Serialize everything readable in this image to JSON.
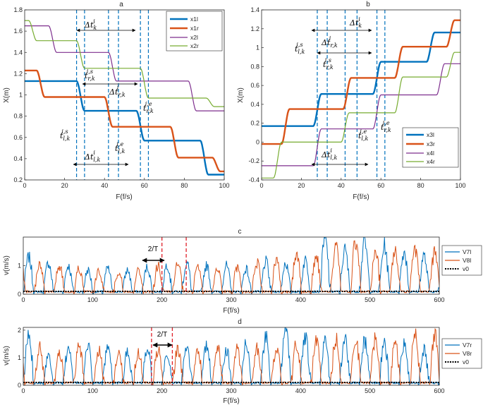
{
  "colors": {
    "blue": "#0072BD",
    "orange": "#D95319",
    "purple": "#7E2F8E",
    "green": "#77AC30",
    "red": "#E0202A",
    "black": "#000000"
  },
  "annotations": {
    "a": {
      "dt_k": "Δt",
      "dt_k_sub": "k",
      "dt_k_sup": "i",
      "t_rs": "t",
      "t_rs_sub": "r,k",
      "t_rs_sup": "i,s",
      "dt_rk": "Δt",
      "dt_rk_sub": "r,k",
      "dt_rk_sup": "i",
      "t_re": "t",
      "t_re_sub": "r,k",
      "t_re_sup": "i,e",
      "t_ls": "t",
      "t_ls_sub": "l,k",
      "t_ls_sup": "i,s",
      "t_le": "t",
      "t_le_sub": "l,k",
      "t_le_sup": "i,e",
      "dt_lk": "Δt",
      "dt_lk_sub": "l,k",
      "dt_lk_sup": "i"
    },
    "two_over_T": "2/T"
  },
  "chart_data": [
    {
      "id": "a",
      "type": "line",
      "title": "a",
      "xlabel": "F(f/s)",
      "ylabel": "X(m)",
      "xlim": [
        0,
        100
      ],
      "ylim": [
        0.2,
        1.8
      ],
      "xticks": [
        0,
        20,
        40,
        60,
        80,
        100
      ],
      "yticks": [
        0.2,
        0.4,
        0.6,
        0.8,
        1,
        1.2,
        1.4,
        1.6,
        1.8
      ],
      "legend": "top-right",
      "vlines": [
        26,
        30,
        42,
        47,
        58,
        62
      ],
      "series": [
        {
          "name": "x1l",
          "color": "#0072BD",
          "width": 2.4,
          "levels": [
            1.13,
            0.85,
            0.57,
            0.25
          ],
          "starts": [
            0,
            28,
            58,
            90,
            100
          ],
          "trans": 4
        },
        {
          "name": "x1r",
          "color": "#D95319",
          "width": 2.4,
          "levels": [
            1.23,
            0.98,
            0.7,
            0.41,
            0.28
          ],
          "starts": [
            0,
            8,
            42,
            75,
            96,
            100
          ],
          "trans": 4
        },
        {
          "name": "x2l",
          "color": "#7E2F8E",
          "width": 1.2,
          "levels": [
            1.65,
            1.4,
            1.13,
            0.85
          ],
          "starts": [
            0,
            14,
            44,
            84,
            100
          ],
          "trans": 4
        },
        {
          "name": "x2r",
          "color": "#77AC30",
          "width": 1.2,
          "levels": [
            1.7,
            1.51,
            1.25,
            0.97,
            0.89
          ],
          "starts": [
            0,
            4,
            28,
            60,
            93,
            100
          ],
          "trans": 4
        }
      ]
    },
    {
      "id": "b",
      "type": "line",
      "title": "b",
      "xlabel": "F(f/s)",
      "ylabel": "X(m)",
      "xlim": [
        0,
        100
      ],
      "ylim": [
        -0.4,
        1.4
      ],
      "xticks": [
        0,
        20,
        40,
        60,
        80,
        100
      ],
      "yticks": [
        -0.4,
        -0.2,
        0,
        0.2,
        0.4,
        0.6,
        0.8,
        1,
        1.2,
        1.4
      ],
      "legend": "bottom-right",
      "vlines": [
        28,
        33,
        42,
        48,
        58,
        62
      ],
      "series": [
        {
          "name": "x3l",
          "color": "#0072BD",
          "width": 2.4,
          "levels": [
            0.17,
            0.51,
            0.85,
            1.16
          ],
          "starts": [
            0,
            28,
            58,
            85,
            100
          ],
          "trans": 4
        },
        {
          "name": "x3r",
          "color": "#D95319",
          "width": 2.4,
          "levels": [
            -0.02,
            0.35,
            0.68,
            1.01,
            1.29
          ],
          "starts": [
            0,
            12,
            43,
            69,
            95,
            100
          ],
          "trans": 4
        },
        {
          "name": "x4l",
          "color": "#7E2F8E",
          "width": 1.2,
          "levels": [
            -0.25,
            0.14,
            0.5,
            0.83
          ],
          "starts": [
            0,
            28,
            58,
            90,
            100
          ],
          "trans": 4
        },
        {
          "name": "x4r",
          "color": "#77AC30",
          "width": 1.2,
          "levels": [
            -0.38,
            0.0,
            0.31,
            0.69,
            0.95
          ],
          "starts": [
            0,
            8,
            42,
            69,
            95,
            100
          ],
          "trans": 4
        }
      ]
    },
    {
      "id": "c",
      "type": "line",
      "title": "c",
      "xlabel": "F(f/s)",
      "ylabel": "v(m/s)",
      "xlim": [
        0,
        600
      ],
      "ylim": [
        0,
        2
      ],
      "xticks": [
        0,
        100,
        200,
        300,
        400,
        500,
        600
      ],
      "yticks": [
        0,
        1
      ],
      "legend": "right",
      "period": 28.5,
      "phase": 0,
      "red_lines": [
        200,
        235
      ],
      "peaks_blue": [
        1.3,
        1.1,
        1.0,
        0.85,
        0.9,
        0.85,
        0.95,
        1.05,
        1.1,
        1.0,
        1.0,
        0.9,
        1.15,
        1.1,
        1.2,
        1.9,
        1.55,
        1.8,
        1.7,
        1.5,
        1.35
      ],
      "peaks_orange": [
        1.6,
        1.1,
        1.0,
        0.9,
        0.85,
        0.8,
        0.85,
        1.0,
        1.05,
        1.0,
        0.95,
        0.9,
        1.1,
        1.2,
        1.45,
        1.3,
        1.75,
        1.85,
        1.5,
        1.6,
        1.5
      ],
      "series": [
        {
          "name": "V7l",
          "color": "#0072BD"
        },
        {
          "name": "V8l",
          "color": "#D95319"
        },
        {
          "name": "v0",
          "color": "#000000",
          "value": 0.1
        }
      ]
    },
    {
      "id": "d",
      "type": "line",
      "title": "d",
      "xlabel": "F(f/s)",
      "ylabel": "v(m/s)",
      "xlim": [
        0,
        600
      ],
      "ylim": [
        0,
        2.1
      ],
      "xticks": [
        0,
        100,
        200,
        300,
        400,
        500,
        600
      ],
      "yticks": [
        0,
        1,
        2
      ],
      "legend": "right",
      "period": 28.5,
      "phase": 0,
      "red_lines": [
        185,
        215
      ],
      "peaks_blue": [
        1.8,
        1.1,
        1.3,
        1.4,
        1.3,
        1.2,
        1.3,
        1.1,
        1.5,
        1.4,
        1.3,
        1.5,
        1.75,
        2.0,
        1.7,
        1.6,
        1.7,
        1.6,
        1.5,
        1.5,
        1.3
      ],
      "peaks_orange": [
        2.1,
        1.4,
        1.2,
        1.4,
        1.3,
        1.2,
        1.2,
        1.3,
        1.3,
        1.25,
        1.4,
        1.3,
        1.35,
        1.4,
        1.5,
        1.6,
        1.7,
        1.65,
        1.7,
        1.55,
        1.8
      ],
      "series": [
        {
          "name": "V7r",
          "color": "#0072BD"
        },
        {
          "name": "V8r",
          "color": "#D95319"
        },
        {
          "name": "v0",
          "color": "#000000",
          "value": 0.1
        }
      ]
    }
  ]
}
